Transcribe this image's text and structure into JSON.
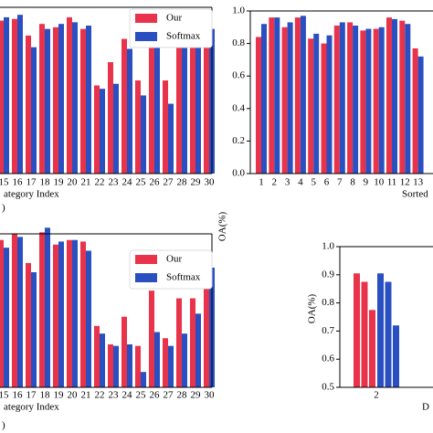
{
  "chart_data": [
    {
      "type": "bar",
      "xlabel": "ategory Index",
      "panel_label": ")",
      "categories": [
        "15",
        "16",
        "17",
        "18",
        "19",
        "20",
        "21",
        "22",
        "23",
        "24",
        "25",
        "26",
        "27",
        "28",
        "29",
        "30"
      ],
      "ylim": [
        0,
        1
      ],
      "legend": "upper right",
      "series": [
        {
          "name": "Our",
          "color": "#e8334a",
          "values": [
            0.92,
            0.93,
            0.83,
            0.9,
            0.88,
            0.94,
            0.87,
            0.53,
            0.67,
            0.81,
            0.56,
            0.84,
            0.56,
            0.9,
            0.78,
            0.84
          ]
        },
        {
          "name": "Softmax",
          "color": "#2a4fc0",
          "values": [
            0.94,
            0.955,
            0.76,
            0.87,
            0.9,
            0.91,
            0.89,
            0.51,
            0.54,
            0.75,
            0.47,
            0.78,
            0.42,
            0.76,
            0.76,
            0.87
          ]
        }
      ]
    },
    {
      "type": "bar",
      "xlabel": "Sorted",
      "ylabel": "OA(%)",
      "categories": [
        "1",
        "2",
        "3",
        "4",
        "5",
        "6",
        "7",
        "8",
        "9",
        "10",
        "11",
        "12",
        "13"
      ],
      "ylim": [
        0,
        1
      ],
      "yticks": [
        {
          "value": 0,
          "label": "0.0"
        },
        0.2,
        0.4,
        0.6,
        0.8,
        {
          "value": 1,
          "label": "1.0"
        }
      ],
      "series": [
        {
          "color": "#e8334a",
          "values": [
            0.84,
            0.96,
            0.9,
            0.96,
            0.83,
            0.8,
            0.91,
            0.93,
            0.88,
            0.89,
            0.96,
            0.94,
            0.77
          ]
        },
        {
          "color": "#2a4fc0",
          "values": [
            0.92,
            0.96,
            0.93,
            0.97,
            0.86,
            0.85,
            0.93,
            0.91,
            0.89,
            0.9,
            0.95,
            0.92,
            0.72
          ]
        }
      ]
    },
    {
      "type": "bar",
      "xlabel": "ategory Index",
      "panel_label": ")",
      "categories": [
        "15",
        "16",
        "17",
        "18",
        "19",
        "20",
        "21",
        "22",
        "23",
        "24",
        "25",
        "26",
        "27",
        "28",
        "29",
        "30"
      ],
      "ylim": [
        0,
        1
      ],
      "legend": "upper right",
      "series": [
        {
          "name": "Our",
          "color": "#e8334a",
          "values": [
            0.96,
            1.0,
            0.81,
            1.01,
            0.93,
            0.96,
            0.95,
            0.4,
            0.28,
            0.46,
            0.27,
            0.63,
            0.32,
            0.58,
            0.58,
            0.83
          ]
        },
        {
          "name": "Softmax",
          "color": "#2a4fc0",
          "values": [
            0.91,
            0.98,
            0.75,
            1.04,
            0.95,
            0.96,
            0.89,
            0.35,
            0.27,
            0.28,
            0.1,
            0.36,
            0.27,
            0.35,
            0.48,
            0.78
          ]
        }
      ]
    },
    {
      "type": "groupbar",
      "xlabel": "D",
      "ylabel": "OA(%)",
      "group_label": "2",
      "ylim": [
        0.5,
        1
      ],
      "yticks": [
        0.5,
        0.6,
        0.7,
        0.8,
        0.9,
        {
          "value": 1,
          "label": "1.0"
        }
      ],
      "series": [
        {
          "color": "#e8334a",
          "values": [
            0.905,
            0.875,
            0.775
          ]
        },
        {
          "color": "#2a4fc0",
          "values": [
            0.905,
            0.875,
            0.72
          ]
        }
      ]
    }
  ]
}
